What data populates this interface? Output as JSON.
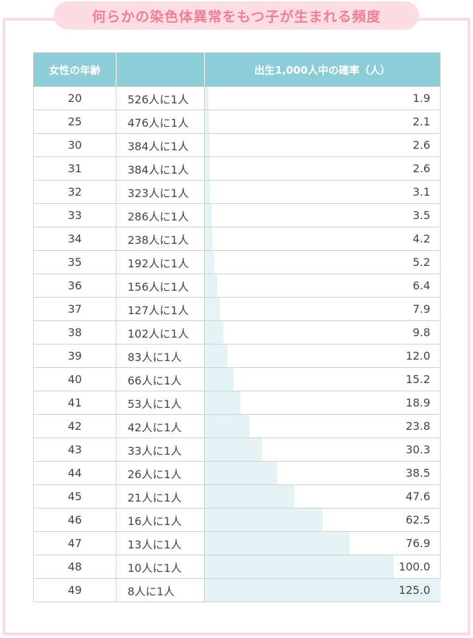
{
  "title": "何らかの染色体異常をもつ子が生まれる頻度",
  "colors": {
    "accent_pink": "#ee7f95",
    "pill_bg": "#fcdde3",
    "header_bg": "#8dcdd7",
    "bar_fill": "#e5f3f4"
  },
  "chart_data": {
    "type": "table",
    "headers": [
      "女性の年齢",
      "",
      "出生1,000人中の確率（人）"
    ],
    "bar_max": 125.0,
    "rows": [
      {
        "age": "20",
        "ratio": "526人に1人",
        "rate": "1.9"
      },
      {
        "age": "25",
        "ratio": "476人に1人",
        "rate": "2.1"
      },
      {
        "age": "30",
        "ratio": "384人に1人",
        "rate": "2.6"
      },
      {
        "age": "31",
        "ratio": "384人に1人",
        "rate": "2.6"
      },
      {
        "age": "32",
        "ratio": "323人に1人",
        "rate": "3.1"
      },
      {
        "age": "33",
        "ratio": "286人に1人",
        "rate": "3.5"
      },
      {
        "age": "34",
        "ratio": "238人に1人",
        "rate": "4.2"
      },
      {
        "age": "35",
        "ratio": "192人に1人",
        "rate": "5.2"
      },
      {
        "age": "36",
        "ratio": "156人に1人",
        "rate": "6.4"
      },
      {
        "age": "37",
        "ratio": "127人に1人",
        "rate": "7.9"
      },
      {
        "age": "38",
        "ratio": "102人に1人",
        "rate": "9.8"
      },
      {
        "age": "39",
        "ratio": "83人に1人",
        "rate": "12.0"
      },
      {
        "age": "40",
        "ratio": "66人に1人",
        "rate": "15.2"
      },
      {
        "age": "41",
        "ratio": "53人に1人",
        "rate": "18.9"
      },
      {
        "age": "42",
        "ratio": "42人に1人",
        "rate": "23.8"
      },
      {
        "age": "43",
        "ratio": "33人に1人",
        "rate": "30.3"
      },
      {
        "age": "44",
        "ratio": "26人に1人",
        "rate": "38.5"
      },
      {
        "age": "45",
        "ratio": "21人に1人",
        "rate": "47.6"
      },
      {
        "age": "46",
        "ratio": "16人に1人",
        "rate": "62.5"
      },
      {
        "age": "47",
        "ratio": "13人に1人",
        "rate": "76.9"
      },
      {
        "age": "48",
        "ratio": "10人に1人",
        "rate": "100.0"
      },
      {
        "age": "49",
        "ratio": "8人に1人",
        "rate": "125.0"
      }
    ]
  }
}
